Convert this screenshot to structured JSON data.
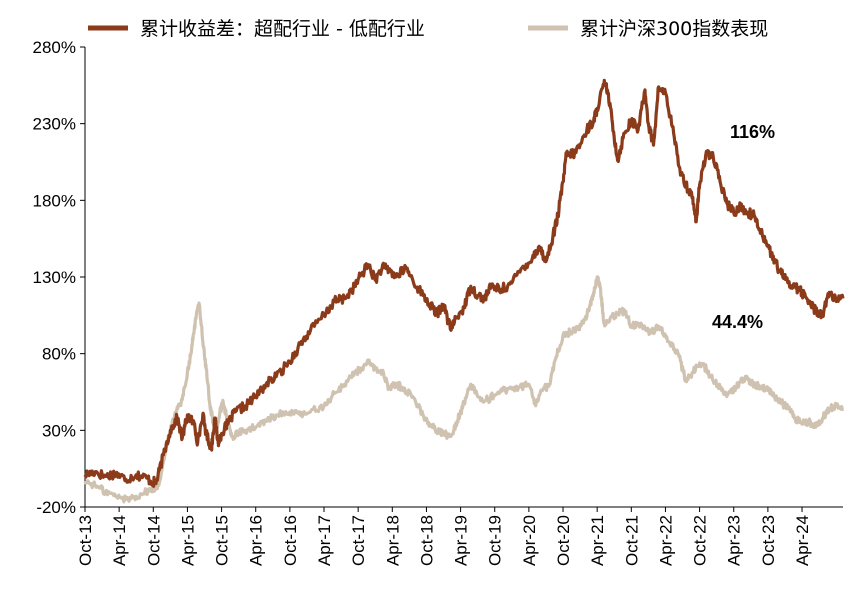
{
  "chart_data": {
    "type": "line",
    "title": "",
    "xlabel": "",
    "ylabel": "",
    "ylim": [
      -20,
      280
    ],
    "y_ticks": [
      "-20%",
      "30%",
      "80%",
      "130%",
      "180%",
      "230%",
      "280%"
    ],
    "y_tick_values": [
      -20,
      30,
      80,
      130,
      180,
      230,
      280
    ],
    "x_ticks": [
      "Oct-13",
      "Apr-14",
      "Oct-14",
      "Apr-15",
      "Oct-15",
      "Apr-16",
      "Oct-16",
      "Apr-17",
      "Oct-17",
      "Apr-18",
      "Oct-18",
      "Apr-19",
      "Oct-19",
      "Apr-20",
      "Oct-20",
      "Apr-21",
      "Oct-21",
      "Apr-22",
      "Oct-22",
      "Apr-23",
      "Oct-23",
      "Apr-24"
    ],
    "x_range": [
      0,
      22.2
    ],
    "legend_position": "top",
    "series": [
      {
        "name": "累计收益差：超配行业 - 低配行业",
        "color": "#8B3A1A",
        "points": [
          [
            0,
            1
          ],
          [
            0.3,
            3
          ],
          [
            0.6,
            0
          ],
          [
            0.9,
            2
          ],
          [
            1.2,
            -2
          ],
          [
            1.5,
            1
          ],
          [
            1.8,
            -1
          ],
          [
            2.0,
            -4
          ],
          [
            2.1,
            -3
          ],
          [
            2.3,
            14
          ],
          [
            2.5,
            30
          ],
          [
            2.7,
            38
          ],
          [
            2.85,
            25
          ],
          [
            3.0,
            40
          ],
          [
            3.2,
            34
          ],
          [
            3.3,
            22
          ],
          [
            3.45,
            40
          ],
          [
            3.55,
            28
          ],
          [
            3.7,
            18
          ],
          [
            3.8,
            38
          ],
          [
            3.9,
            22
          ],
          [
            4.0,
            28
          ],
          [
            4.2,
            35
          ],
          [
            4.4,
            42
          ],
          [
            4.7,
            46
          ],
          [
            5.0,
            52
          ],
          [
            5.3,
            60
          ],
          [
            5.6,
            65
          ],
          [
            6.0,
            75
          ],
          [
            6.3,
            86
          ],
          [
            6.6,
            95
          ],
          [
            7.0,
            105
          ],
          [
            7.3,
            114
          ],
          [
            7.6,
            116
          ],
          [
            7.9,
            124
          ],
          [
            8.1,
            132
          ],
          [
            8.3,
            138
          ],
          [
            8.5,
            128
          ],
          [
            8.7,
            136
          ],
          [
            8.9,
            135
          ],
          [
            9.1,
            130
          ],
          [
            9.4,
            136
          ],
          [
            9.6,
            128
          ],
          [
            9.9,
            118
          ],
          [
            10.1,
            112
          ],
          [
            10.3,
            106
          ],
          [
            10.5,
            112
          ],
          [
            10.7,
            96
          ],
          [
            10.9,
            104
          ],
          [
            11.1,
            110
          ],
          [
            11.3,
            124
          ],
          [
            11.5,
            118
          ],
          [
            11.7,
            116
          ],
          [
            11.9,
            124
          ],
          [
            12.2,
            122
          ],
          [
            12.5,
            126
          ],
          [
            12.8,
            136
          ],
          [
            13.1,
            142
          ],
          [
            13.3,
            150
          ],
          [
            13.5,
            140
          ],
          [
            13.7,
            156
          ],
          [
            13.85,
            170
          ],
          [
            14.0,
            192
          ],
          [
            14.1,
            210
          ],
          [
            14.3,
            210
          ],
          [
            14.5,
            216
          ],
          [
            14.7,
            226
          ],
          [
            14.9,
            232
          ],
          [
            15.0,
            240
          ],
          [
            15.2,
            256
          ],
          [
            15.3,
            252
          ],
          [
            15.45,
            230
          ],
          [
            15.6,
            206
          ],
          [
            15.8,
            224
          ],
          [
            16.0,
            232
          ],
          [
            16.2,
            226
          ],
          [
            16.4,
            252
          ],
          [
            16.5,
            230
          ],
          [
            16.65,
            216
          ],
          [
            16.8,
            254
          ],
          [
            17.0,
            250
          ],
          [
            17.2,
            228
          ],
          [
            17.4,
            202
          ],
          [
            17.6,
            190
          ],
          [
            17.8,
            182
          ],
          [
            17.9,
            166
          ],
          [
            18.0,
            190
          ],
          [
            18.2,
            212
          ],
          [
            18.4,
            208
          ],
          [
            18.6,
            192
          ],
          [
            18.8,
            178
          ],
          [
            19.0,
            172
          ],
          [
            19.2,
            176
          ],
          [
            19.4,
            172
          ],
          [
            19.6,
            170
          ],
          [
            19.8,
            160
          ],
          [
            20.0,
            150
          ],
          [
            20.2,
            140
          ],
          [
            20.4,
            132
          ],
          [
            20.6,
            126
          ],
          [
            20.8,
            124
          ],
          [
            21.0,
            120
          ],
          [
            21.2,
            114
          ],
          [
            21.4,
            108
          ],
          [
            21.6,
            106
          ],
          [
            21.8,
            120
          ],
          [
            22.0,
            114
          ],
          [
            22.2,
            116
          ]
        ]
      },
      {
        "name": "累计沪深300指数表现",
        "color": "#CFC2B0",
        "points": [
          [
            0,
            -3
          ],
          [
            0.3,
            -6
          ],
          [
            0.6,
            -10
          ],
          [
            0.9,
            -13
          ],
          [
            1.2,
            -15
          ],
          [
            1.5,
            -13
          ],
          [
            1.8,
            -10
          ],
          [
            2.0,
            -8
          ],
          [
            2.15,
            -6
          ],
          [
            2.3,
            10
          ],
          [
            2.5,
            30
          ],
          [
            2.7,
            45
          ],
          [
            2.85,
            50
          ],
          [
            3.0,
            68
          ],
          [
            3.1,
            80
          ],
          [
            3.2,
            96
          ],
          [
            3.3,
            110
          ],
          [
            3.35,
            112
          ],
          [
            3.45,
            88
          ],
          [
            3.55,
            70
          ],
          [
            3.65,
            48
          ],
          [
            3.75,
            36
          ],
          [
            3.85,
            30
          ],
          [
            3.95,
            42
          ],
          [
            4.05,
            48
          ],
          [
            4.15,
            38
          ],
          [
            4.3,
            26
          ],
          [
            4.5,
            28
          ],
          [
            4.7,
            30
          ],
          [
            5.0,
            32
          ],
          [
            5.3,
            36
          ],
          [
            5.6,
            40
          ],
          [
            6.0,
            42
          ],
          [
            6.3,
            40
          ],
          [
            6.6,
            42
          ],
          [
            7.0,
            46
          ],
          [
            7.3,
            54
          ],
          [
            7.6,
            60
          ],
          [
            7.9,
            68
          ],
          [
            8.1,
            70
          ],
          [
            8.3,
            74
          ],
          [
            8.5,
            70
          ],
          [
            8.7,
            68
          ],
          [
            8.9,
            58
          ],
          [
            9.1,
            60
          ],
          [
            9.3,
            58
          ],
          [
            9.6,
            52
          ],
          [
            9.9,
            40
          ],
          [
            10.1,
            34
          ],
          [
            10.3,
            30
          ],
          [
            10.5,
            28
          ],
          [
            10.7,
            26
          ],
          [
            10.9,
            36
          ],
          [
            11.1,
            48
          ],
          [
            11.3,
            60
          ],
          [
            11.5,
            52
          ],
          [
            11.8,
            50
          ],
          [
            12.1,
            55
          ],
          [
            12.4,
            57
          ],
          [
            12.7,
            58
          ],
          [
            13.0,
            60
          ],
          [
            13.2,
            46
          ],
          [
            13.4,
            56
          ],
          [
            13.6,
            60
          ],
          [
            13.8,
            78
          ],
          [
            14.0,
            92
          ],
          [
            14.2,
            94
          ],
          [
            14.4,
            96
          ],
          [
            14.6,
            100
          ],
          [
            14.8,
            112
          ],
          [
            14.9,
            120
          ],
          [
            15.0,
            130
          ],
          [
            15.1,
            122
          ],
          [
            15.2,
            100
          ],
          [
            15.4,
            104
          ],
          [
            15.6,
            106
          ],
          [
            15.8,
            108
          ],
          [
            16.0,
            98
          ],
          [
            16.2,
            100
          ],
          [
            16.4,
            96
          ],
          [
            16.6,
            94
          ],
          [
            16.8,
            98
          ],
          [
            17.0,
            92
          ],
          [
            17.2,
            86
          ],
          [
            17.4,
            78
          ],
          [
            17.6,
            62
          ],
          [
            17.8,
            68
          ],
          [
            18.0,
            74
          ],
          [
            18.2,
            70
          ],
          [
            18.4,
            62
          ],
          [
            18.6,
            58
          ],
          [
            18.8,
            52
          ],
          [
            19.0,
            56
          ],
          [
            19.2,
            62
          ],
          [
            19.4,
            64
          ],
          [
            19.6,
            60
          ],
          [
            19.8,
            58
          ],
          [
            20.0,
            56
          ],
          [
            20.2,
            52
          ],
          [
            20.4,
            48
          ],
          [
            20.6,
            44
          ],
          [
            20.8,
            38
          ],
          [
            21.0,
            34
          ],
          [
            21.2,
            36
          ],
          [
            21.4,
            32
          ],
          [
            21.6,
            38
          ],
          [
            21.8,
            44
          ],
          [
            22.0,
            46
          ],
          [
            22.2,
            44
          ]
        ]
      }
    ],
    "annotations": [
      {
        "text": "116%",
        "series": 0
      },
      {
        "text": "44.4%",
        "series": 1
      }
    ]
  }
}
